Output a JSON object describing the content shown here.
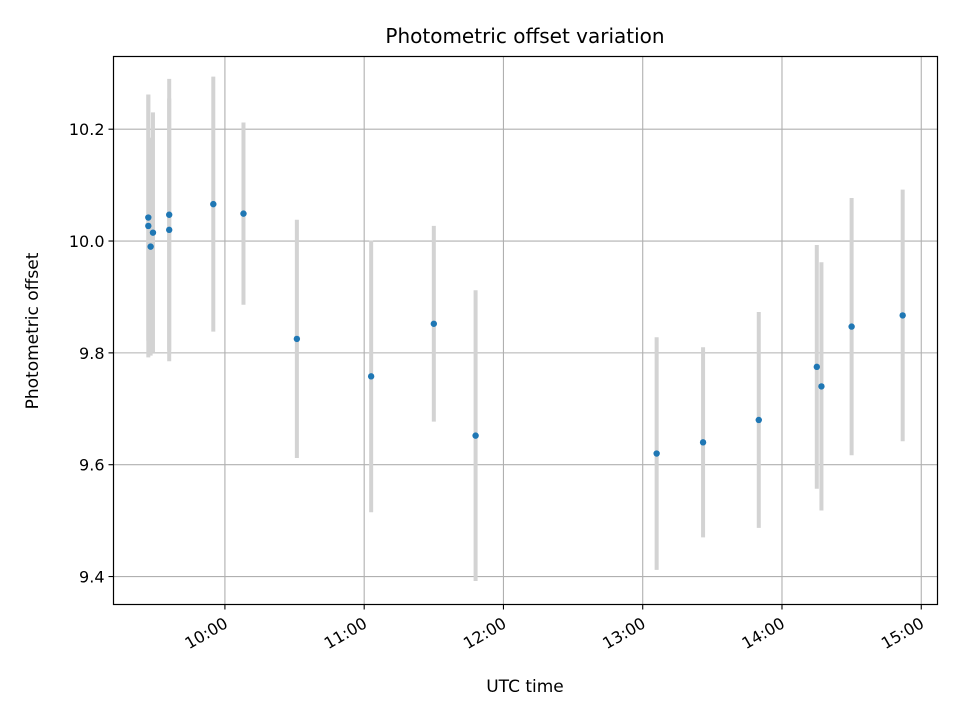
{
  "chart_data": {
    "type": "scatter",
    "title": "Photometric offset variation",
    "xlabel": "UTC time",
    "ylabel": "Photometric offset",
    "x_ticks": [
      "10:00",
      "11:00",
      "12:00",
      "13:00",
      "14:00",
      "15:00"
    ],
    "y_ticks": [
      "9.4",
      "9.6",
      "9.8",
      "10.0",
      "10.2"
    ],
    "xlim": [
      "09:12",
      "15:07"
    ],
    "ylim": [
      9.35,
      10.33
    ],
    "grid": true,
    "marker_color": "#1f77b4",
    "errorbar_color": "#d3d3d3",
    "series": [
      {
        "points": [
          {
            "time": "09:27",
            "value": 10.042,
            "err": 0.22
          },
          {
            "time": "09:27",
            "value": 10.027,
            "err": 0.235
          },
          {
            "time": "09:28",
            "value": 9.99,
            "err": 0.195
          },
          {
            "time": "09:29",
            "value": 10.015,
            "err": 0.215
          },
          {
            "time": "09:36",
            "value": 10.047,
            "err": 0.243
          },
          {
            "time": "09:36",
            "value": 10.02,
            "err": 0.235
          },
          {
            "time": "09:55",
            "value": 10.066,
            "err": 0.228
          },
          {
            "time": "10:08",
            "value": 10.049,
            "err": 0.163
          },
          {
            "time": "10:31",
            "value": 9.825,
            "err": 0.213
          },
          {
            "time": "11:03",
            "value": 9.758,
            "err": 0.243
          },
          {
            "time": "11:30",
            "value": 9.852,
            "err": 0.175
          },
          {
            "time": "11:48",
            "value": 9.652,
            "err": 0.26
          },
          {
            "time": "13:06",
            "value": 9.62,
            "err": 0.208
          },
          {
            "time": "13:26",
            "value": 9.64,
            "err": 0.17
          },
          {
            "time": "13:50",
            "value": 9.68,
            "err": 0.193
          },
          {
            "time": "14:15",
            "value": 9.775,
            "err": 0.218
          },
          {
            "time": "14:17",
            "value": 9.74,
            "err": 0.222
          },
          {
            "time": "14:30",
            "value": 9.847,
            "err": 0.23
          },
          {
            "time": "14:52",
            "value": 9.867,
            "err": 0.225
          }
        ]
      }
    ]
  }
}
